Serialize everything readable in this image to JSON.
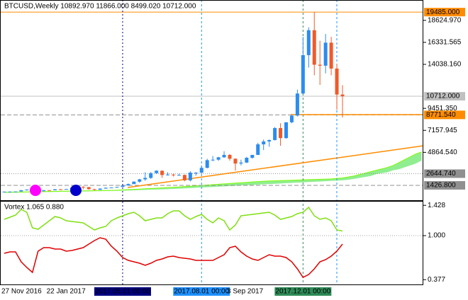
{
  "chart_data": [
    {
      "type": "candlestick",
      "title": "BTCUSD,Weekly  10892.970 11866.000 8499.020 10712.000",
      "categories": [
        "27 Nov 2016",
        null,
        null,
        null,
        null,
        null,
        null,
        null,
        "22 Jan 2017",
        null,
        null,
        null,
        null,
        null,
        null,
        null,
        null,
        null,
        null,
        null,
        null,
        "2017.05.01 00:00",
        null,
        null,
        null,
        null,
        null,
        null,
        null,
        null,
        null,
        null,
        null,
        null,
        null,
        "2017.08.01 00:00",
        null,
        null,
        null,
        null,
        "3 Sep 2017",
        null,
        null,
        null,
        null,
        null,
        null,
        null,
        null,
        null,
        null,
        null,
        null,
        "2017.12.01 00:00",
        null,
        null,
        null,
        null,
        null,
        null,
        null,
        null,
        null,
        null,
        null,
        null,
        null,
        null,
        null,
        null,
        null,
        null,
        null,
        null,
        null
      ],
      "open": [
        730,
        770,
        775,
        785,
        920,
        995,
        900,
        820,
        920,
        915,
        1020,
        1000,
        1050,
        1180,
        1270,
        1240,
        1030,
        960,
        1090,
        1180,
        1200,
        1260,
        1410,
        1560,
        1810,
        2050,
        2200,
        2700,
        2950,
        2500,
        2550,
        2500,
        2510,
        1950,
        2750,
        2750,
        3250,
        4050,
        4100,
        4350,
        4600,
        4200,
        3700,
        3800,
        4300,
        4600,
        5700,
        6000,
        6150,
        7400,
        6350,
        8000,
        8700,
        11000,
        15000,
        17600,
        14000,
        13900,
        16300,
        13600,
        10892.97,
        null,
        null,
        null,
        null,
        null,
        null,
        null,
        null,
        null,
        null,
        null,
        null,
        null,
        null
      ],
      "high": [
        780,
        780,
        790,
        930,
        1000,
        1150,
        910,
        935,
        925,
        1030,
        1060,
        1050,
        1200,
        1290,
        1330,
        1260,
        1070,
        1100,
        1200,
        1210,
        1270,
        1420,
        1620,
        1840,
        2100,
        2790,
        2800,
        3000,
        2980,
        2790,
        2620,
        2630,
        2550,
        2900,
        2800,
        3480,
        4200,
        4480,
        4400,
        4980,
        4700,
        4250,
        4100,
        4400,
        4600,
        5860,
        6200,
        6200,
        7500,
        7900,
        8000,
        8800,
        11400,
        16900,
        17900,
        19485,
        16500,
        17200,
        16900,
        14100,
        11866,
        null,
        null,
        null,
        null,
        null,
        null,
        null,
        null,
        null,
        null,
        null,
        null,
        null,
        null
      ],
      "low": [
        725,
        750,
        760,
        785,
        880,
        780,
        750,
        815,
        880,
        910,
        940,
        990,
        1040,
        1140,
        1000,
        980,
        890,
        950,
        1080,
        1160,
        1190,
        1250,
        1400,
        1550,
        1700,
        1900,
        2100,
        2600,
        2200,
        2450,
        2350,
        2450,
        1850,
        1830,
        2430,
        2650,
        3200,
        3950,
        3980,
        4300,
        4000,
        2970,
        3500,
        3750,
        4200,
        4600,
        5100,
        5450,
        6100,
        5550,
        6300,
        7900,
        8600,
        10900,
        13700,
        12900,
        11900,
        13100,
        12900,
        9300,
        8499.02,
        null,
        null,
        null,
        null,
        null,
        null,
        null,
        null,
        null,
        null,
        null,
        null,
        null,
        null
      ],
      "close": [
        770,
        775,
        785,
        920,
        995,
        900,
        820,
        920,
        915,
        1020,
        1000,
        1050,
        1180,
        1270,
        1240,
        1030,
        960,
        1090,
        1180,
        1200,
        1260,
        1410,
        1560,
        1810,
        2050,
        2200,
        2700,
        2950,
        2500,
        2550,
        2500,
        2510,
        1950,
        2750,
        2750,
        3250,
        4050,
        4100,
        4350,
        4600,
        4200,
        3700,
        3800,
        4300,
        4600,
        5700,
        6000,
        6150,
        7400,
        6350,
        8000,
        8700,
        11000,
        15000,
        17600,
        14000,
        13900,
        16300,
        13600,
        10892.97,
        10712,
        null,
        null,
        null,
        null,
        null,
        null,
        null,
        null,
        null,
        null,
        null,
        null,
        null,
        null
      ],
      "up_color": "#2b8cf0",
      "down_color": "#f05a28",
      "cloud": {
        "color": "#90ee90",
        "edge_color": "#7cfc00",
        "lower": [
          650,
          660,
          670,
          680,
          690,
          700,
          710,
          720,
          730,
          740,
          750,
          760,
          770,
          780,
          790,
          800,
          810,
          820,
          830,
          840,
          850,
          870,
          890,
          910,
          930,
          950,
          970,
          990,
          1010,
          1030,
          1050,
          1080,
          1110,
          1140,
          1170,
          1200,
          1230,
          1260,
          1290,
          1320,
          1350,
          1380,
          1410,
          1440,
          1470,
          1500,
          1530,
          1560,
          1590,
          1620,
          1650,
          1680,
          1710,
          1740,
          1770,
          1800,
          1830,
          1860,
          1890,
          1920,
          1950,
          2000,
          2100,
          2200,
          2300,
          2400,
          2600,
          2700,
          2800,
          3000,
          3100,
          3300,
          3500,
          3700,
          4000
        ],
        "upper": [
          700,
          710,
          720,
          730,
          740,
          760,
          770,
          780,
          790,
          800,
          810,
          820,
          830,
          840,
          850,
          860,
          870,
          880,
          890,
          900,
          920,
          950,
          980,
          1010,
          1040,
          1070,
          1100,
          1130,
          1160,
          1190,
          1220,
          1260,
          1300,
          1340,
          1380,
          1420,
          1460,
          1500,
          1540,
          1580,
          1620,
          1660,
          1700,
          1740,
          1780,
          1820,
          1860,
          1880,
          1900,
          1920,
          1940,
          1960,
          1980,
          2000,
          2020,
          2040,
          2060,
          2080,
          2100,
          2150,
          2200,
          2300,
          2400,
          2550,
          2700,
          2850,
          3000,
          3150,
          3300,
          3500,
          3800,
          4100,
          4400,
          4700,
          4900
        ]
      },
      "marker_colors": [
        "#000080",
        "#1e90ff",
        "#2e8b57"
      ],
      "ylim": [
        -200,
        20600
      ],
      "yticks": [
        {
          "value": 18624.97,
          "label": "18624.970"
        },
        {
          "value": 16331.565,
          "label": "16331.565"
        },
        {
          "value": 14038.16,
          "label": "14038.160"
        },
        {
          "value": 9451.35,
          "label": "9451.350"
        },
        {
          "value": 7157.945,
          "label": "7157.945"
        },
        {
          "value": 4864.54,
          "label": "4864.540"
        }
      ],
      "hlines": [
        {
          "value": 19485,
          "label": "19485.000",
          "color": "#ff8c00",
          "style": "solid"
        },
        {
          "value": 10712,
          "label": "10712.000",
          "color": "#c0c0c0",
          "style": "solid"
        },
        {
          "value": 8771.54,
          "label": "8771.540",
          "color": "#ff8c00",
          "style": "dashed"
        },
        {
          "value": 2644.74,
          "label": "2644.740",
          "color": "#909090",
          "style": "dotted"
        },
        {
          "value": 1426.8,
          "label": "1426.800",
          "color": "#909090",
          "style": "dashed"
        }
      ]
    },
    {
      "type": "line",
      "title": "Vortex 1.065 0.880",
      "ylim": [
        0.3,
        1.49
      ],
      "yticks": [
        1.428,
        {
          "value": 1,
          "label": "1.000"
        },
        0.377
      ],
      "series": [
        {
          "color": "#7fe010",
          "values": [
            1.23,
            1.26,
            1.29,
            1.37,
            1.33,
            1.11,
            1.09,
            1.15,
            1.21,
            1.27,
            1.25,
            1.21,
            1.2,
            1.19,
            1.18,
            1.13,
            1.08,
            1.11,
            1.13,
            1.21,
            1.25,
            1.28,
            1.31,
            1.33,
            1.28,
            1.21,
            1.23,
            1.25,
            1.25,
            1.31,
            1.35,
            1.35,
            1.28,
            1.23,
            1.27,
            1.3,
            1.23,
            1.18,
            1.25,
            1.21,
            1.08,
            1.15,
            1.28,
            1.29,
            1.3,
            1.31,
            1.32,
            1.33,
            1.29,
            1.23,
            1.25,
            1.27,
            1.31,
            1.33,
            1.4,
            1.28,
            1.23,
            1.25,
            1.21,
            1.08,
            1.065,
            null,
            null,
            null,
            null,
            null,
            null,
            null,
            null,
            null,
            null,
            null,
            null,
            null,
            null
          ]
        },
        {
          "color": "#e00000",
          "values": [
            0.75,
            0.77,
            0.77,
            0.63,
            0.55,
            0.48,
            0.78,
            0.83,
            0.83,
            0.81,
            0.81,
            0.78,
            0.79,
            0.81,
            0.83,
            0.88,
            0.93,
            0.97,
            0.95,
            0.85,
            0.78,
            0.69,
            0.65,
            0.63,
            0.61,
            0.58,
            0.61,
            0.65,
            0.67,
            0.7,
            0.71,
            0.69,
            0.68,
            0.67,
            0.65,
            0.65,
            0.65,
            0.65,
            0.69,
            0.73,
            0.83,
            0.85,
            0.77,
            0.71,
            0.67,
            0.65,
            0.69,
            0.73,
            0.71,
            0.71,
            0.69,
            0.63,
            0.53,
            0.41,
            0.45,
            0.53,
            0.63,
            0.66,
            0.71,
            0.78,
            0.88,
            null,
            null,
            null,
            null,
            null,
            null,
            null,
            null,
            null,
            null,
            null,
            null,
            null,
            null
          ]
        }
      ]
    }
  ]
}
